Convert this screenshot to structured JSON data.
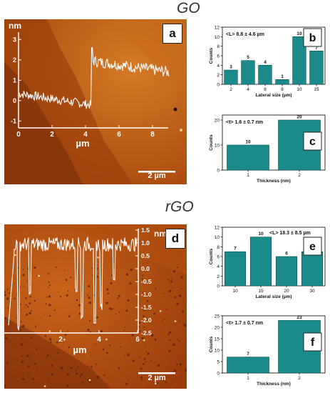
{
  "figure": {
    "top_title": "GO",
    "bottom_title": "rGO"
  },
  "panels": {
    "a": {
      "letter": "a",
      "scalebar": "2 µm",
      "profile_xlabel": "µm",
      "profile_ylabel": "nm",
      "profile_xticks": [
        "0",
        "2",
        "4",
        "6",
        "8"
      ],
      "profile_yticks": [
        "3",
        "2",
        "1",
        "0",
        "-1"
      ]
    },
    "d": {
      "letter": "d",
      "scalebar": "2 µm",
      "profile_xlabel": "µm",
      "profile_ylabel": "nm",
      "profile_xticks": [
        "2",
        "4",
        "6"
      ],
      "profile_yticks": [
        "1.5",
        "1.0",
        "0.5",
        "0.0",
        "-0.5",
        "-1.0",
        "-1.5",
        "-2.0",
        "-2.5"
      ]
    },
    "b": {
      "letter": "b",
      "annotation": "<L> 8.8 ± 4.6 µm"
    },
    "c": {
      "letter": "c",
      "annotation": "<t> 1.6 ± 0.7 nm"
    },
    "e": {
      "letter": "e",
      "annotation": "<L> 18.3 ± 8.5 µm"
    },
    "f": {
      "letter": "f",
      "annotation": "<t> 1.7 ± 0.7 nm"
    }
  },
  "colors": {
    "bar": "#1b8a8a",
    "bar_edge": "#0b4f50",
    "afm_dark": "#7a2a08",
    "afm_mid": "#b8520f",
    "afm_light": "#d9781e",
    "profile_line": "#ffffff"
  },
  "chart_data": [
    {
      "id": "b",
      "type": "bar",
      "categories": [
        "2",
        "4",
        "6",
        "8",
        "10",
        "15"
      ],
      "values": [
        3,
        5,
        4,
        1,
        10,
        7
      ],
      "xlabel": "Lateral size (µm)",
      "ylabel": "Counts",
      "ylim": [
        0,
        12
      ],
      "yticks": [
        0,
        2,
        4,
        6,
        8,
        10,
        12
      ]
    },
    {
      "id": "c",
      "type": "bar",
      "categories": [
        "1",
        "2"
      ],
      "values": [
        10,
        20
      ],
      "xlabel": "Thickness (nm)",
      "ylabel": "Counts",
      "ylim": [
        0,
        22
      ],
      "yticks": [
        0,
        10,
        20
      ]
    },
    {
      "id": "e",
      "type": "bar",
      "categories": [
        "10",
        "15",
        "20",
        "30"
      ],
      "values": [
        7,
        10,
        6,
        7
      ],
      "xlabel": "Lateral size (µm)",
      "ylabel": "Counts",
      "ylim": [
        0,
        12
      ],
      "yticks": [
        0,
        2,
        4,
        6,
        8,
        10,
        12
      ]
    },
    {
      "id": "f",
      "type": "bar",
      "categories": [
        "1",
        "2"
      ],
      "values": [
        7,
        23
      ],
      "xlabel": "Thickness (nm)",
      "ylabel": "Counts",
      "ylim": [
        0,
        25
      ],
      "yticks": [
        0,
        5,
        10,
        15,
        20,
        25
      ]
    }
  ]
}
